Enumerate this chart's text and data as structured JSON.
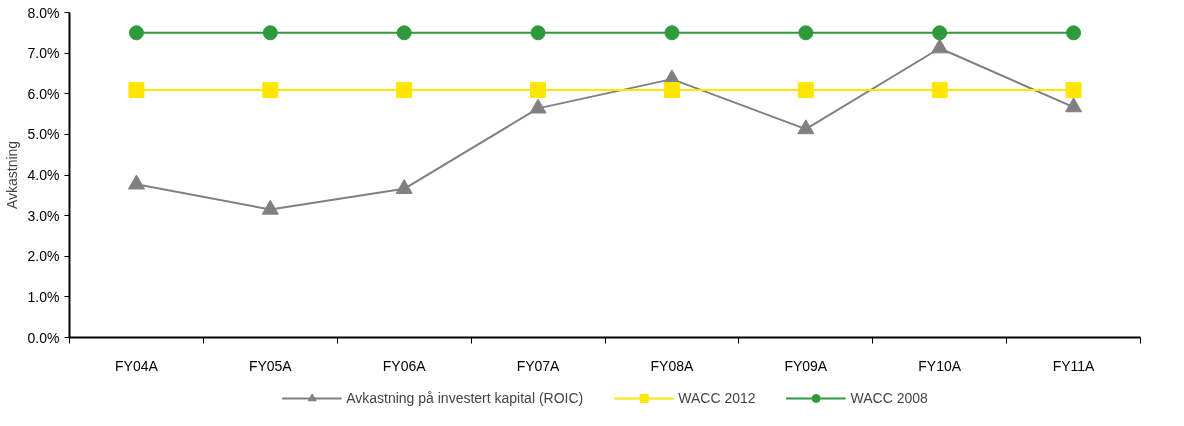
{
  "chart_data": {
    "type": "line",
    "ylabel": "Avkastning",
    "categories": [
      "FY04A",
      "FY05A",
      "FY06A",
      "FY07A",
      "FY08A",
      "FY09A",
      "FY10A",
      "FY11A"
    ],
    "series": [
      {
        "name": "Avkastning på investert kapital (ROIC)",
        "color": "#808080",
        "marker": "triangle",
        "values": [
          3.77,
          3.15,
          3.66,
          5.64,
          6.36,
          5.13,
          7.12,
          5.67
        ]
      },
      {
        "name": "WACC 2012",
        "color": "#ffe600",
        "marker": "square",
        "values": [
          6.09,
          6.09,
          6.09,
          6.09,
          6.09,
          6.09,
          6.09,
          6.09
        ]
      },
      {
        "name": "WACC 2008",
        "color": "#2e9a3c",
        "marker": "circle",
        "values": [
          7.5,
          7.5,
          7.5,
          7.5,
          7.5,
          7.5,
          7.5,
          7.5
        ]
      }
    ],
    "ylim": [
      0,
      8
    ],
    "yticks": [
      {
        "value": 0,
        "label": "0.0%"
      },
      {
        "value": 1,
        "label": "1.0%"
      },
      {
        "value": 2,
        "label": "2.0%"
      },
      {
        "value": 3,
        "label": "3.0%"
      },
      {
        "value": 4,
        "label": "4.0%"
      },
      {
        "value": 5,
        "label": "5.0%"
      },
      {
        "value": 6,
        "label": "6.0%"
      },
      {
        "value": 7,
        "label": "7.0%"
      },
      {
        "value": 8,
        "label": "8.0%"
      }
    ],
    "grid": false,
    "legend": "bottom"
  }
}
